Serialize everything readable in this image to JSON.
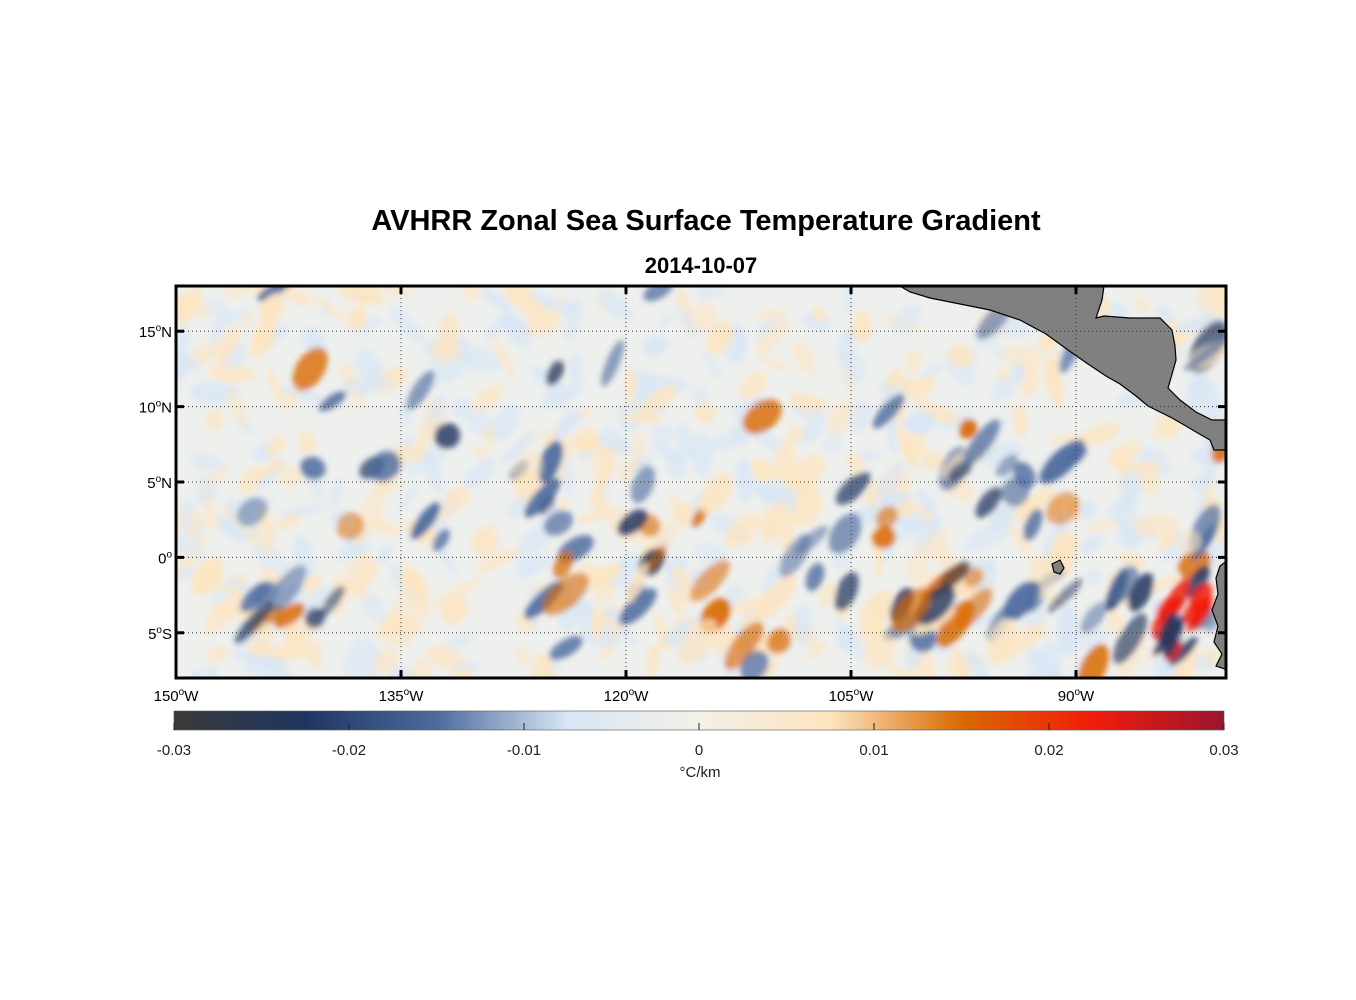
{
  "title": "AVHRR Zonal Sea Surface Temperature Gradient",
  "subtitle": "2014-10-07",
  "map": {
    "lon_range": [
      -150,
      -80
    ],
    "lat_range": [
      -8,
      18
    ],
    "lon_ticks": [
      {
        "value": -150,
        "text": "150",
        "sup": "o",
        "hemi": "W"
      },
      {
        "value": -135,
        "text": "135",
        "sup": "o",
        "hemi": "W"
      },
      {
        "value": -120,
        "text": "120",
        "sup": "o",
        "hemi": "W"
      },
      {
        "value": -105,
        "text": "105",
        "sup": "o",
        "hemi": "W"
      },
      {
        "value": -90,
        "text": "90",
        "sup": "o",
        "hemi": "W"
      }
    ],
    "lat_ticks": [
      {
        "value": 15,
        "text": "15",
        "sup": "o",
        "hemi": "N"
      },
      {
        "value": 10,
        "text": "10",
        "sup": "o",
        "hemi": "N"
      },
      {
        "value": 5,
        "text": "5",
        "sup": "o",
        "hemi": "N"
      },
      {
        "value": 0,
        "text": "0",
        "sup": "o",
        "hemi": ""
      },
      {
        "value": -5,
        "text": "5",
        "sup": "o",
        "hemi": "S"
      }
    ],
    "land_color": "#808080",
    "grid_style": "dotted"
  },
  "colorbar": {
    "range": [
      -0.03,
      0.03
    ],
    "ticks": [
      "-0.03",
      "-0.02",
      "-0.01",
      "0",
      "0.01",
      "0.02",
      "0.03"
    ],
    "tick_values": [
      -0.03,
      -0.02,
      -0.01,
      0,
      0.01,
      0.02,
      0.03
    ],
    "units": "°C/km",
    "colors": [
      "#3a3a3a",
      "#1f3560",
      "#4d6b9e",
      "#d8e6f5",
      "#f3f0e8",
      "#fde4bf",
      "#d96a00",
      "#f21c0a",
      "#9a1530"
    ]
  }
}
